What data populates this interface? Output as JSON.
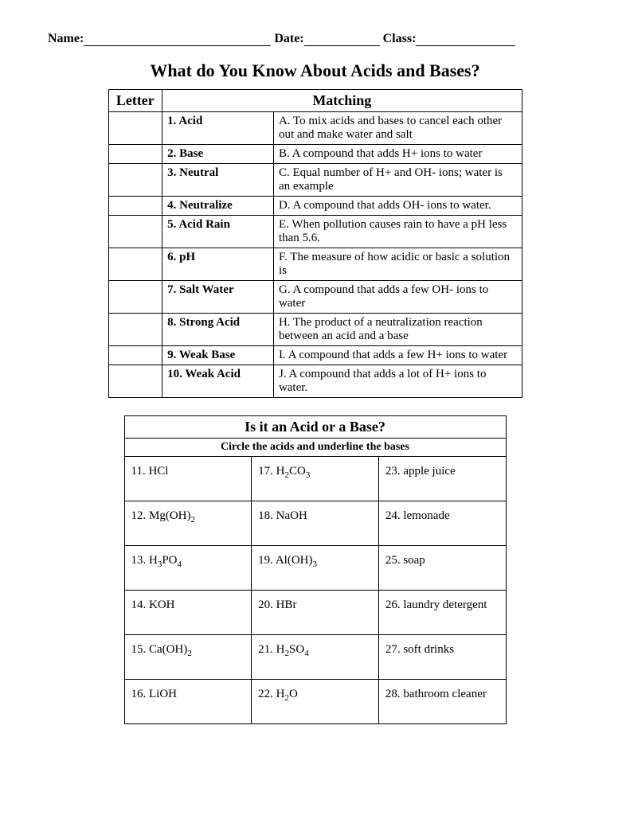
{
  "header": {
    "name_label": "Name:",
    "date_label": "Date:",
    "class_label": "Class:",
    "name_blank_width": 235,
    "date_blank_width": 95,
    "class_blank_width": 125
  },
  "title": "What do You Know About Acids and Bases?",
  "matching": {
    "col_letter_header": "Letter",
    "col_matching_header": "Matching",
    "rows": [
      {
        "term": "1.  Acid",
        "def": "A.  To mix acids and bases to cancel each other out and make water and salt"
      },
      {
        "term": "2.  Base",
        "def": "B.  A compound that adds H+ ions to water"
      },
      {
        "term": "3.  Neutral",
        "def": "C.  Equal number of H+ and OH- ions; water is an example"
      },
      {
        "term": "4.  Neutralize",
        "def": "D.  A compound that adds OH- ions to water."
      },
      {
        "term": "5.  Acid Rain",
        "def": "E.  When pollution causes rain to have a pH less than 5.6."
      },
      {
        "term": "6.  pH",
        "def": "F.  The measure of how acidic or basic a solution is"
      },
      {
        "term": "7.  Salt Water",
        "def": "G.  A compound that adds a few OH- ions to water"
      },
      {
        "term": "8.  Strong Acid",
        "def": "H.  The product of a neutralization reaction between an acid and a base"
      },
      {
        "term": "9.  Weak Base",
        "def": "I.  A compound that adds a few H+ ions to water"
      },
      {
        "term": "10.  Weak Acid",
        "def": "J.  A compound that adds a lot of H+ ions to water."
      }
    ]
  },
  "acid_base": {
    "title": "Is it an Acid or a Base?",
    "instruction": "Circle the acids and underline the bases",
    "rows": [
      {
        "c1_num": "11.  ",
        "c1_formula": "HCl",
        "c2_num": "17.  ",
        "c2_formula": "H2CO3",
        "c3_num": "23.  ",
        "c3_text": "apple juice"
      },
      {
        "c1_num": "12.  ",
        "c1_formula": "Mg(OH)2",
        "c2_num": "18.  ",
        "c2_formula": "NaOH",
        "c3_num": "24.  ",
        "c3_text": "lemonade"
      },
      {
        "c1_num": "13.  ",
        "c1_formula": "H3PO4",
        "c2_num": "19.  ",
        "c2_formula": "Al(OH)3",
        "c3_num": "25.  ",
        "c3_text": "soap"
      },
      {
        "c1_num": "14.  ",
        "c1_formula": "KOH",
        "c2_num": "20.  ",
        "c2_formula": "HBr",
        "c3_num": "26.  ",
        "c3_text": "laundry detergent"
      },
      {
        "c1_num": "15.  ",
        "c1_formula": "Ca(OH)2",
        "c2_num": "21.  ",
        "c2_formula": "H2SO4",
        "c3_num": "27.  ",
        "c3_text": "soft drinks"
      },
      {
        "c1_num": "16.  ",
        "c1_formula": "LiOH",
        "c2_num": "22.  ",
        "c2_formula": "H2O",
        "c3_num": "28.  ",
        "c3_text": "bathroom cleaner"
      }
    ]
  },
  "style": {
    "font_family": "Times New Roman",
    "text_color": "#000000",
    "background_color": "#ffffff",
    "border_color": "#000000",
    "title_fontsize": 22,
    "body_fontsize": 15,
    "table_header_fontsize": 18
  }
}
